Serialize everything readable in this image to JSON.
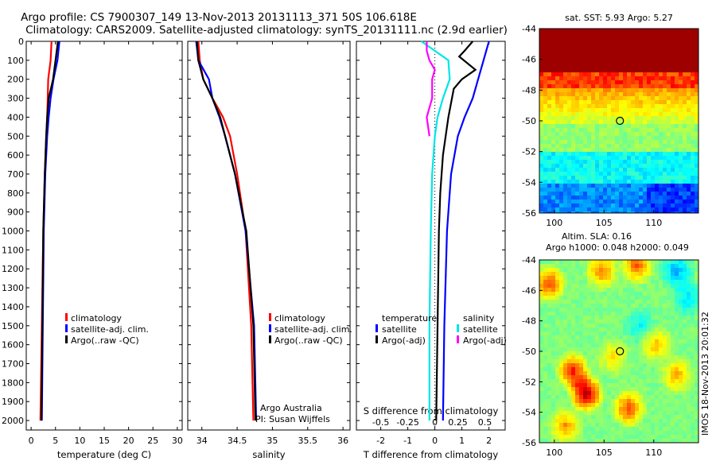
{
  "figure": {
    "title_line1": "Argo profile: CS 7900307_149 13-Nov-2013 20131113_371 50S 106.618E",
    "title_line2": "Climatology: CARS2009. Satellite-adjusted climatology: synTS_20131111.nc (2.9d earlier)",
    "timestamp": "IMOS 18-Nov-2013 20:01:32",
    "argo_credit_1": "Argo Australia",
    "argo_credit_2": "PI: Susan Wijffels"
  },
  "colors": {
    "climatology": "#ff0000",
    "satellite": "#0000ff",
    "argo": "#000000",
    "sal_satellite": "#00e5e5",
    "sal_argo": "#ff00ff"
  },
  "chart_data": [
    {
      "id": "temperature",
      "type": "line",
      "xlabel": "temperature (deg C)",
      "ylabel": "",
      "xlim": [
        -1,
        31
      ],
      "ylim": [
        2050,
        0
      ],
      "xticks": [
        0,
        5,
        10,
        15,
        20,
        25,
        30
      ],
      "yticks": [
        0,
        100,
        200,
        300,
        400,
        500,
        600,
        700,
        800,
        900,
        1000,
        1100,
        1200,
        1300,
        1400,
        1500,
        1600,
        1700,
        1800,
        1900,
        2000
      ],
      "legend": [
        "climatology",
        "satellite-adj. clim.",
        "Argo(..raw -QC)"
      ],
      "series": [
        {
          "name": "climatology",
          "depth": [
            0,
            100,
            200,
            300,
            400,
            500,
            700,
            1000,
            1500,
            2000
          ],
          "values": [
            4.2,
            4.0,
            3.5,
            3.4,
            3.3,
            3.1,
            2.8,
            2.5,
            2.2,
            1.9
          ]
        },
        {
          "name": "satellite-adj. clim.",
          "depth": [
            0,
            100,
            200,
            300,
            400,
            500,
            700,
            1000,
            1500,
            2000
          ],
          "values": [
            5.8,
            5.4,
            4.6,
            4.0,
            3.6,
            3.3,
            2.9,
            2.6,
            2.4,
            2.2
          ]
        },
        {
          "name": "Argo(..raw -QC)",
          "depth": [
            0,
            100,
            200,
            300,
            400,
            500,
            700,
            1000,
            1500,
            2000
          ],
          "values": [
            5.5,
            5.0,
            4.5,
            3.6,
            3.3,
            3.1,
            2.8,
            2.5,
            2.3,
            2.1
          ]
        }
      ]
    },
    {
      "id": "salinity",
      "type": "line",
      "xlabel": "salinity",
      "xlim": [
        33.8,
        36.1
      ],
      "ylim": [
        2050,
        0
      ],
      "xticks": [
        34,
        34.5,
        35,
        35.5,
        36
      ],
      "legend": [
        "climatology",
        "satellite-adj. clim.",
        "Argo(..raw -QC)"
      ],
      "series": [
        {
          "name": "climatology",
          "depth": [
            0,
            100,
            200,
            300,
            400,
            500,
            700,
            1000,
            1500,
            2000
          ],
          "values": [
            33.95,
            33.97,
            34.02,
            34.15,
            34.3,
            34.4,
            34.5,
            34.62,
            34.7,
            34.73
          ]
        },
        {
          "name": "satellite-adj. clim.",
          "depth": [
            0,
            100,
            200,
            300,
            400,
            500,
            700,
            1000,
            1500,
            2000
          ],
          "values": [
            33.92,
            33.95,
            34.1,
            34.15,
            34.25,
            34.33,
            34.47,
            34.62,
            34.74,
            34.77
          ]
        },
        {
          "name": "Argo(..raw -QC)",
          "depth": [
            0,
            100,
            200,
            300,
            400,
            500,
            700,
            1000,
            1500,
            2000
          ],
          "values": [
            33.93,
            33.95,
            34.02,
            34.15,
            34.26,
            34.33,
            34.47,
            34.63,
            34.73,
            34.76
          ]
        }
      ]
    },
    {
      "id": "difference",
      "type": "line",
      "xlabel": "T difference from climatology",
      "xlabel_top": "S difference from climatology",
      "xlim": [
        -2.9,
        2.6
      ],
      "ylim": [
        2050,
        0
      ],
      "xticks": [
        -2,
        -1,
        0,
        1,
        2
      ],
      "xticks_top": [
        "-0.5",
        "-0.25",
        "0",
        "0.25",
        "0.5"
      ],
      "legend_headers": [
        "temperature",
        "salinity"
      ],
      "legend": [
        "satellite",
        "Argo(-adj)",
        "satellite",
        "Argo(-adj)"
      ],
      "series": [
        {
          "name": "satellite",
          "depth": [
            0,
            50,
            100,
            200,
            300,
            400,
            500,
            700,
            1000,
            1500,
            2000
          ],
          "values": [
            2.0,
            1.9,
            1.8,
            1.6,
            1.4,
            1.1,
            0.85,
            0.6,
            0.45,
            0.35,
            0.3
          ]
        },
        {
          "name": "Argo(-adj)",
          "depth": [
            0,
            50,
            80,
            150,
            200,
            250,
            400,
            600,
            800,
            1000,
            1500,
            2000
          ],
          "values": [
            1.4,
            1.1,
            0.9,
            1.5,
            1.0,
            0.7,
            0.5,
            0.3,
            0.2,
            0.15,
            0.1,
            0.05
          ]
        },
        {
          "name": "satellite",
          "depth": [
            0,
            100,
            200,
            300,
            400,
            500,
            700,
            1000,
            1500,
            2000
          ],
          "values": [
            -0.5,
            0.5,
            0.55,
            0.3,
            0.1,
            0.0,
            -0.1,
            -0.15,
            -0.2,
            -0.2
          ]
        },
        {
          "name": "Argo(-adj)",
          "depth": [
            0,
            50,
            100,
            150,
            200,
            300,
            400,
            500
          ],
          "values": [
            -0.3,
            -0.3,
            -0.2,
            0.0,
            -0.1,
            -0.1,
            -0.3,
            -0.2
          ]
        }
      ]
    },
    {
      "id": "sst_map",
      "type": "heatmap",
      "title": "sat. SST: 5.93 Argo: 5.27",
      "xlim": [
        98.5,
        114.5
      ],
      "ylim": [
        -56,
        -44
      ],
      "xticks": [
        100,
        105,
        110
      ],
      "yticks": [
        -44,
        -46,
        -48,
        -50,
        -52,
        -54,
        -56
      ],
      "marker": {
        "lon": 106.6,
        "lat": -50
      }
    },
    {
      "id": "sla_map",
      "type": "heatmap",
      "title_line1": "Altim. SLA: 0.16",
      "title_line2": "Argo h1000: 0.048 h2000: 0.049",
      "xlim": [
        98.5,
        114.5
      ],
      "ylim": [
        -56,
        -44
      ],
      "xticks": [
        100,
        105,
        110
      ],
      "yticks": [
        -44,
        -46,
        -48,
        -50,
        -52,
        -54,
        -56
      ],
      "marker": {
        "lon": 106.6,
        "lat": -50
      }
    }
  ]
}
